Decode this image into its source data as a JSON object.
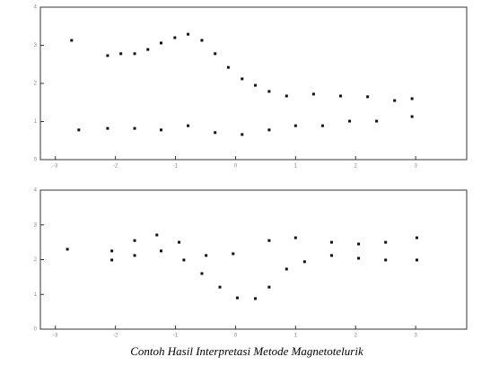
{
  "charts": [
    {
      "type": "scatter",
      "xlim": [
        -3.25,
        3.85
      ],
      "xticks": [
        -3,
        -2,
        -1,
        0,
        1,
        2,
        3
      ],
      "ylim": [
        0,
        4
      ],
      "yticks": [
        0,
        1,
        2,
        3,
        4
      ],
      "series": [
        {
          "color": "#111111",
          "x": [
            -2.73,
            -2.13,
            -1.91,
            -1.68,
            -1.46,
            -1.24,
            -1.01,
            -0.79,
            -0.56,
            -0.34,
            -0.12,
            0.11,
            0.33,
            0.56,
            0.85,
            1.3,
            1.75,
            2.2,
            2.65,
            2.94
          ],
          "values": [
            3.13,
            2.73,
            2.78,
            2.78,
            2.89,
            3.06,
            3.2,
            3.29,
            3.13,
            2.78,
            2.42,
            2.12,
            1.95,
            1.79,
            1.67,
            1.72,
            1.67,
            1.65,
            1.55,
            1.6
          ]
        },
        {
          "color": "#111111",
          "x": [
            -2.61,
            -2.13,
            -1.68,
            -1.24,
            -0.79,
            -0.34,
            0.11,
            0.56,
            1.0,
            1.45,
            1.9,
            2.35,
            2.94
          ],
          "values": [
            0.78,
            0.82,
            0.82,
            0.78,
            0.89,
            0.71,
            0.66,
            0.78,
            0.89,
            0.89,
            1.01,
            1.01,
            1.13
          ]
        }
      ]
    },
    {
      "type": "scatter",
      "xlim": [
        -3.25,
        3.85
      ],
      "xticks": [
        -3,
        -2,
        -1,
        0,
        1,
        2,
        3
      ],
      "ylim": [
        0,
        4
      ],
      "yticks": [
        0,
        1,
        2,
        3,
        4
      ],
      "series": [
        {
          "color": "#111111",
          "x": [
            -2.8,
            -2.06,
            -1.68,
            -1.31,
            -0.94,
            -0.49,
            -0.04,
            0.56,
            1.0,
            1.6,
            2.05,
            2.5,
            3.02
          ],
          "values": [
            2.3,
            2.25,
            2.55,
            2.71,
            2.5,
            2.12,
            2.17,
            2.55,
            2.63,
            2.5,
            2.45,
            2.5,
            2.63
          ]
        },
        {
          "color": "#111111",
          "x": [
            -2.06,
            -1.68,
            -1.24,
            -0.86,
            -0.56,
            -0.26,
            0.03,
            0.33,
            0.56,
            0.85,
            1.15,
            1.6,
            2.05,
            2.5,
            3.02
          ],
          "values": [
            1.99,
            2.12,
            2.25,
            1.99,
            1.6,
            1.21,
            0.9,
            0.88,
            1.21,
            1.73,
            1.94,
            2.12,
            2.04,
            1.99,
            1.99
          ]
        }
      ]
    }
  ],
  "caption": "Contoh Hasil Interpretasi Metode Magnetotelurik"
}
